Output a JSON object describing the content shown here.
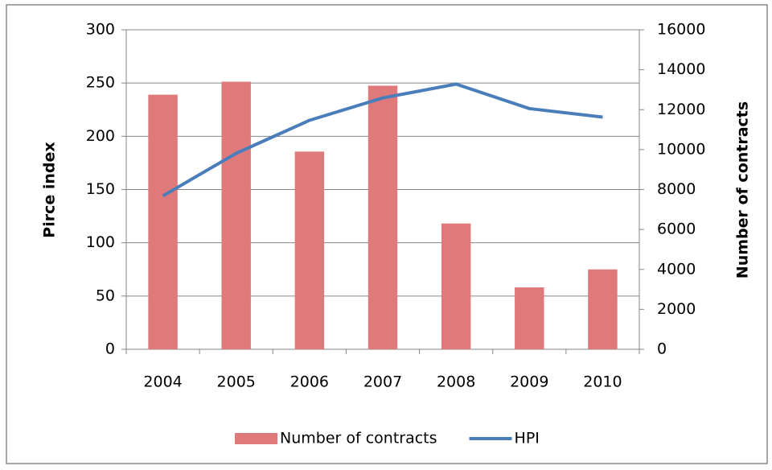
{
  "chart_data": {
    "type": "bar-line",
    "categories": [
      "2004",
      "2005",
      "2006",
      "2007",
      "2008",
      "2009",
      "2010"
    ],
    "series": [
      {
        "name": "Number of contracts",
        "type": "bar",
        "axis": "y2",
        "color": "#e07a7a",
        "values": [
          12750,
          13400,
          9900,
          13200,
          6300,
          3100,
          4000
        ]
      },
      {
        "name": "HPI",
        "type": "line",
        "axis": "y",
        "color": "#4a7ebb",
        "values": [
          144,
          184,
          215,
          236,
          249,
          226,
          218
        ]
      }
    ],
    "ylabel": "Pirce index",
    "y2label": "Number of contracts",
    "ylim": [
      0,
      300
    ],
    "yticks": [
      0,
      50,
      100,
      150,
      200,
      250,
      300
    ],
    "y2lim": [
      0,
      16000
    ],
    "y2ticks": [
      0,
      2000,
      4000,
      6000,
      8000,
      10000,
      12000,
      14000,
      16000
    ],
    "grid": true,
    "legend": "bottom"
  }
}
